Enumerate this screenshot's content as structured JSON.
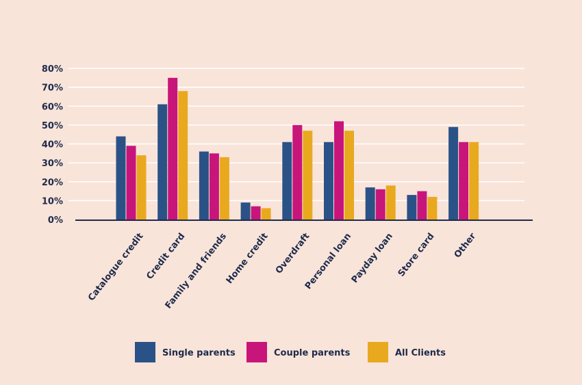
{
  "chart_data": {
    "type": "bar",
    "categories": [
      "Catalogue credit",
      "Credit card",
      "Family and friends",
      "Home credit",
      "Overdraft",
      "Personal loan",
      "Payday loan",
      "Store card",
      "Other"
    ],
    "series": [
      {
        "name": "Single parents",
        "color": "#2b5286",
        "values": [
          44,
          61,
          36,
          9,
          41,
          41,
          17,
          13,
          49
        ]
      },
      {
        "name": "Couple parents",
        "color": "#c8157a",
        "values": [
          39,
          75,
          35,
          7,
          50,
          52,
          16,
          15,
          41
        ]
      },
      {
        "name": "All Clients",
        "color": "#e9a91f",
        "values": [
          34,
          68,
          33,
          6,
          47,
          47,
          18,
          12,
          41
        ]
      }
    ],
    "yticks": [
      "0%",
      "10%",
      "20%",
      "30%",
      "40%",
      "50%",
      "60%",
      "70%",
      "80%"
    ],
    "ylim": [
      0,
      80
    ],
    "grid": true,
    "legend_position": "bottom",
    "axis_color": "#1d2b4a",
    "grid_color": "#ffffff",
    "background": "#f9e4da"
  }
}
